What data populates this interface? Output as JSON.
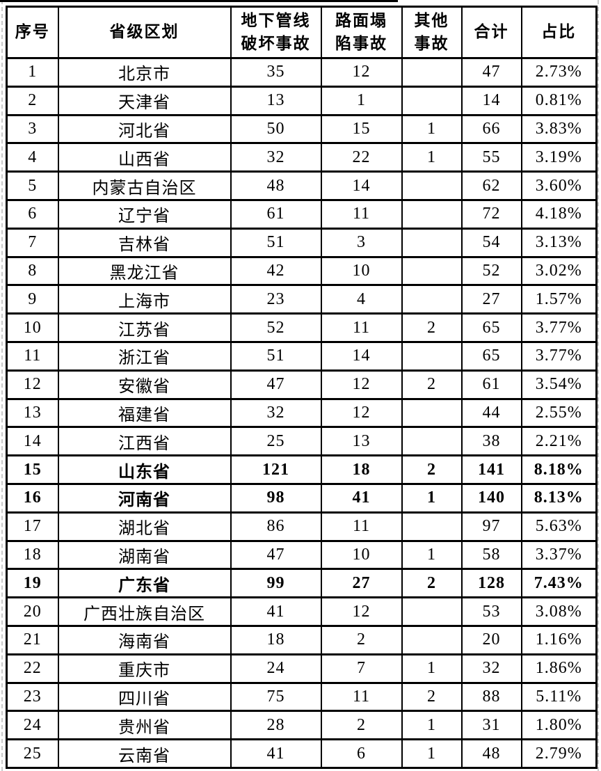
{
  "page": {
    "background_color": "#ffffff",
    "margin_guide_color": "#c9c9c9",
    "table_border_color": "#000000",
    "text_color": "#000000"
  },
  "table": {
    "columns": [
      {
        "label": "序号"
      },
      {
        "label": "省级区划"
      },
      {
        "label": "地下管线\n破坏事故"
      },
      {
        "label": "路面塌\n陷事故"
      },
      {
        "label": "其他\n事故"
      },
      {
        "label": "合计"
      },
      {
        "label": "占比"
      }
    ],
    "rows": [
      {
        "cells": [
          "1",
          "北京市",
          "35",
          "12",
          "",
          "47",
          "2.73%"
        ],
        "bold": false
      },
      {
        "cells": [
          "2",
          "天津省",
          "13",
          "1",
          "",
          "14",
          "0.81%"
        ],
        "bold": false
      },
      {
        "cells": [
          "3",
          "河北省",
          "50",
          "15",
          "1",
          "66",
          "3.83%"
        ],
        "bold": false
      },
      {
        "cells": [
          "4",
          "山西省",
          "32",
          "22",
          "1",
          "55",
          "3.19%"
        ],
        "bold": false
      },
      {
        "cells": [
          "5",
          "内蒙古自治区",
          "48",
          "14",
          "",
          "62",
          "3.60%"
        ],
        "bold": false
      },
      {
        "cells": [
          "6",
          "辽宁省",
          "61",
          "11",
          "",
          "72",
          "4.18%"
        ],
        "bold": false
      },
      {
        "cells": [
          "7",
          "吉林省",
          "51",
          "3",
          "",
          "54",
          "3.13%"
        ],
        "bold": false
      },
      {
        "cells": [
          "8",
          "黑龙江省",
          "42",
          "10",
          "",
          "52",
          "3.02%"
        ],
        "bold": false
      },
      {
        "cells": [
          "9",
          "上海市",
          "23",
          "4",
          "",
          "27",
          "1.57%"
        ],
        "bold": false
      },
      {
        "cells": [
          "10",
          "江苏省",
          "52",
          "11",
          "2",
          "65",
          "3.77%"
        ],
        "bold": false
      },
      {
        "cells": [
          "11",
          "浙江省",
          "51",
          "14",
          "",
          "65",
          "3.77%"
        ],
        "bold": false
      },
      {
        "cells": [
          "12",
          "安徽省",
          "47",
          "12",
          "2",
          "61",
          "3.54%"
        ],
        "bold": false
      },
      {
        "cells": [
          "13",
          "福建省",
          "32",
          "12",
          "",
          "44",
          "2.55%"
        ],
        "bold": false
      },
      {
        "cells": [
          "14",
          "江西省",
          "25",
          "13",
          "",
          "38",
          "2.21%"
        ],
        "bold": false
      },
      {
        "cells": [
          "15",
          "山东省",
          "121",
          "18",
          "2",
          "141",
          "8.18%"
        ],
        "bold": true
      },
      {
        "cells": [
          "16",
          "河南省",
          "98",
          "41",
          "1",
          "140",
          "8.13%"
        ],
        "bold": true
      },
      {
        "cells": [
          "17",
          "湖北省",
          "86",
          "11",
          "",
          "97",
          "5.63%"
        ],
        "bold": false
      },
      {
        "cells": [
          "18",
          "湖南省",
          "47",
          "10",
          "1",
          "58",
          "3.37%"
        ],
        "bold": false
      },
      {
        "cells": [
          "19",
          "广东省",
          "99",
          "27",
          "2",
          "128",
          "7.43%"
        ],
        "bold": true
      },
      {
        "cells": [
          "20",
          "广西壮族自治区",
          "41",
          "12",
          "",
          "53",
          "3.08%"
        ],
        "bold": false
      },
      {
        "cells": [
          "21",
          "海南省",
          "18",
          "2",
          "",
          "20",
          "1.16%"
        ],
        "bold": false
      },
      {
        "cells": [
          "22",
          "重庆市",
          "24",
          "7",
          "1",
          "32",
          "1.86%"
        ],
        "bold": false
      },
      {
        "cells": [
          "23",
          "四川省",
          "75",
          "11",
          "2",
          "88",
          "5.11%"
        ],
        "bold": false
      },
      {
        "cells": [
          "24",
          "贵州省",
          "28",
          "2",
          "1",
          "31",
          "1.80%"
        ],
        "bold": false
      },
      {
        "cells": [
          "25",
          "云南省",
          "41",
          "6",
          "1",
          "48",
          "2.79%"
        ],
        "bold": false
      }
    ]
  }
}
